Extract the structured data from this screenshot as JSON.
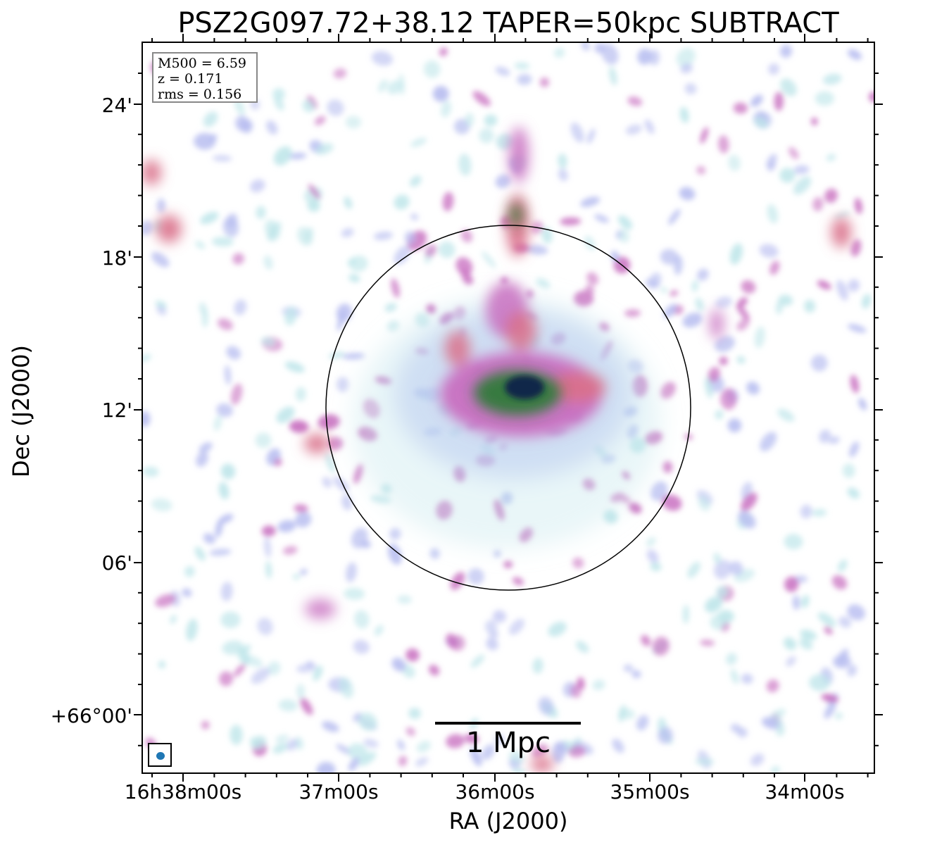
{
  "title": "PSZ2G097.72+38.12 TAPER=50kpc SUBTRACT",
  "axes": {
    "xlabel": "RA (J2000)",
    "ylabel": "Dec (J2000)",
    "x_ticks": [
      "16h38m00s",
      "37m00s",
      "36m00s",
      "35m00s",
      "34m00s"
    ],
    "y_ticks": [
      "24'",
      "18'",
      "12'",
      "06'",
      "+66°00'"
    ]
  },
  "info": {
    "m500": "M500 = 6.59",
    "z": "z = 0.171",
    "rms": "rms = 0.156"
  },
  "scale_bar": {
    "label": "1 Mpc"
  },
  "colors": {
    "faint": "#bfe6ea",
    "low": "#b7bdf0",
    "mid": "#c86fc0",
    "high_pink": "#d9708a",
    "green": "#2f7a3a",
    "core": "#10224a",
    "beam": "#1f77b4"
  },
  "icons": {
    "beam": "beam-ellipse-icon"
  }
}
